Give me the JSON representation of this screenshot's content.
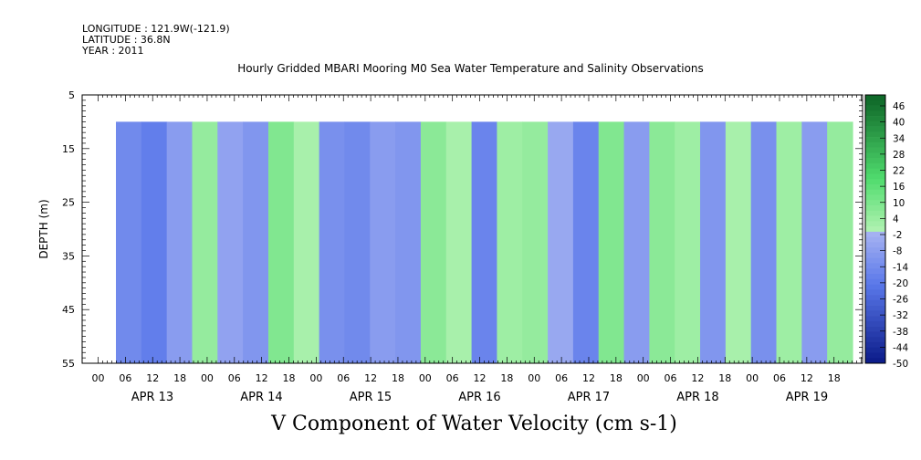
{
  "meta": {
    "longitude": "LONGITUDE : 121.9W(-121.9)",
    "latitude": "LATITUDE : 36.8N",
    "year": "YEAR : 2011"
  },
  "title": "Hourly Gridded MBARI Mooring M0 Sea Water Temperature and Salinity Observations",
  "colorbar_title": "V Component of Water Velocity (cm s-1)",
  "chart_data": {
    "type": "heatmap",
    "xlabel": "",
    "ylabel": "DEPTH (m)",
    "ylim": [
      5,
      55
    ],
    "y_ticks": [
      5,
      15,
      25,
      35,
      45,
      55
    ],
    "y_inverted": true,
    "data_depth_range": [
      10,
      55
    ],
    "x_tick_hours": [
      "00",
      "06",
      "12",
      "18",
      "00",
      "06",
      "12",
      "18",
      "00",
      "06",
      "12",
      "18",
      "00",
      "06",
      "12",
      "18",
      "00",
      "06",
      "12",
      "18",
      "00",
      "06",
      "12",
      "18",
      "00",
      "06",
      "12",
      "18"
    ],
    "x_day_labels": [
      "APR 13",
      "APR 14",
      "APR 15",
      "APR 16",
      "APR 17",
      "APR 18",
      "APR 19"
    ],
    "colorbar": {
      "labels": [
        "46",
        "40",
        "34",
        "28",
        "22",
        "16",
        "10",
        "4",
        "-2",
        "-8",
        "-14",
        "-20",
        "-26",
        "-32",
        "-38",
        "-44",
        "-50"
      ],
      "range": [
        -50,
        52
      ]
    },
    "colors": {
      "strong_negative": "#0a1a88",
      "negative": "#5a78ea",
      "weak_negative": "#a8b4f2",
      "weak_positive": "#b2f2b2",
      "positive": "#50dc6e",
      "strong_positive": "#106a2a"
    },
    "columns": [
      {
        "x": "APR 12 18:00",
        "v": -14
      },
      {
        "x": "APR 13 00:00",
        "v": -18
      },
      {
        "x": "APR 13 06:00",
        "v": -8
      },
      {
        "x": "APR 13 12:00",
        "v": 6
      },
      {
        "x": "APR 13 18:00",
        "v": -6
      },
      {
        "x": "APR 14 00:00",
        "v": -10
      },
      {
        "x": "APR 14 06:00",
        "v": 10
      },
      {
        "x": "APR 14 12:00",
        "v": 2
      },
      {
        "x": "APR 14 18:00",
        "v": -12
      },
      {
        "x": "APR 15 00:00",
        "v": -14
      },
      {
        "x": "APR 15 06:00",
        "v": -8
      },
      {
        "x": "APR 15 12:00",
        "v": -10
      },
      {
        "x": "APR 15 18:00",
        "v": 8
      },
      {
        "x": "APR 16 00:00",
        "v": 2
      },
      {
        "x": "APR 16 06:00",
        "v": -16
      },
      {
        "x": "APR 16 12:00",
        "v": 4
      },
      {
        "x": "APR 16 18:00",
        "v": 6
      },
      {
        "x": "APR 17 00:00",
        "v": -4
      },
      {
        "x": "APR 17 06:00",
        "v": -16
      },
      {
        "x": "APR 17 12:00",
        "v": 10
      },
      {
        "x": "APR 17 18:00",
        "v": -8
      },
      {
        "x": "APR 18 00:00",
        "v": 8
      },
      {
        "x": "APR 18 06:00",
        "v": 4
      },
      {
        "x": "APR 18 12:00",
        "v": -10
      },
      {
        "x": "APR 18 18:00",
        "v": 2
      },
      {
        "x": "APR 19 00:00",
        "v": -12
      },
      {
        "x": "APR 19 06:00",
        "v": 4
      },
      {
        "x": "APR 19 12:00",
        "v": -8
      },
      {
        "x": "APR 19 18:00",
        "v": 6
      }
    ]
  }
}
